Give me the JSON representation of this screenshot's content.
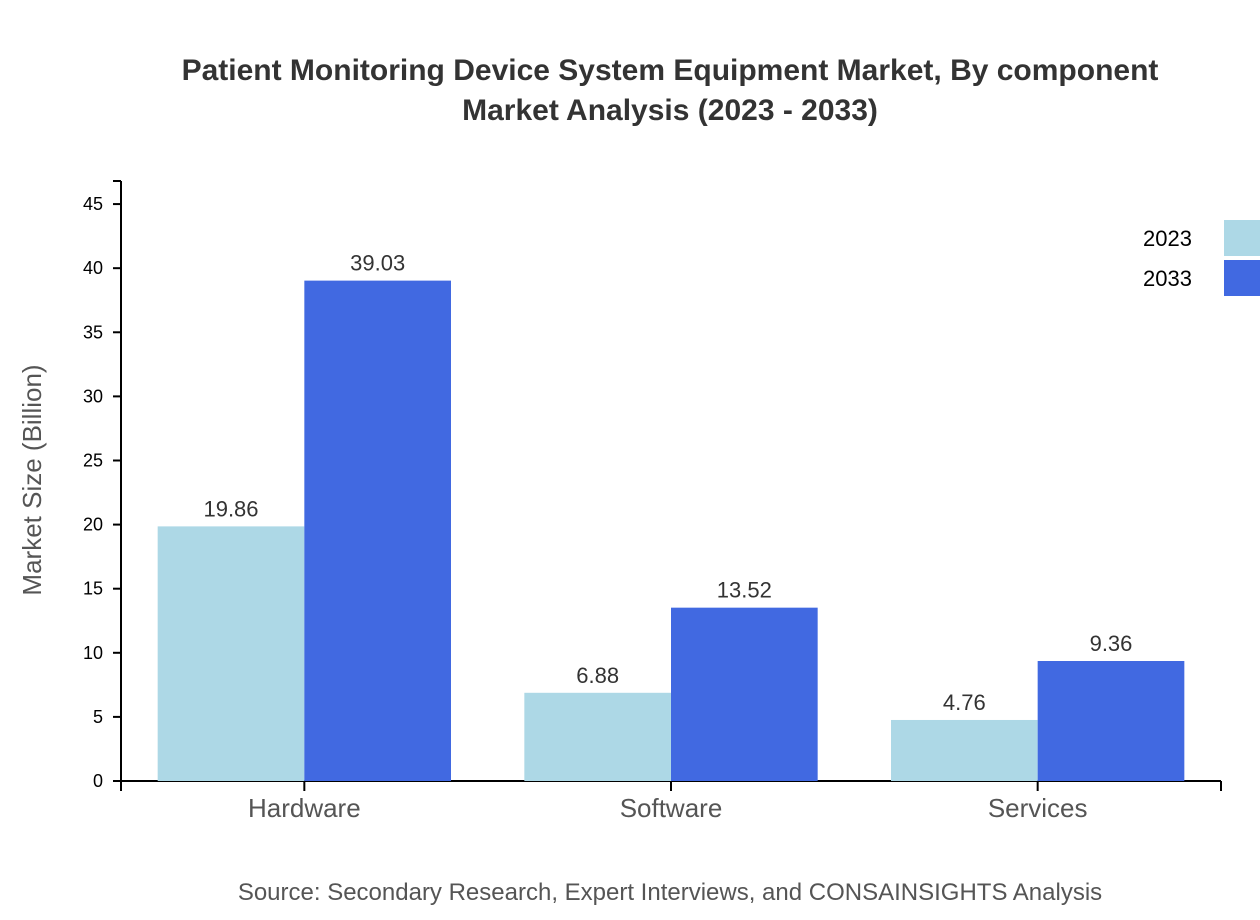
{
  "chart_data": {
    "type": "bar",
    "title": [
      "Patient Monitoring Device System Equipment Market, By component",
      "Market Analysis (2023 - 2033)"
    ],
    "xlabel": "",
    "ylabel": "Market Size (Billion)",
    "categories": [
      "Hardware",
      "Software",
      "Services"
    ],
    "series": [
      {
        "name": "2023",
        "values": [
          19.86,
          6.88,
          4.76
        ],
        "color": "#add8e6"
      },
      {
        "name": "2033",
        "values": [
          39.03,
          13.52,
          9.36
        ],
        "color": "#4169e1"
      }
    ],
    "ylim": [
      0,
      46.8
    ],
    "yticks": [
      0,
      5,
      10,
      15,
      20,
      25,
      30,
      35,
      40,
      45
    ],
    "grid": false,
    "legend": "top-right",
    "source": "Source: Secondary Research, Expert Interviews, and CONSAINSIGHTS Analysis"
  }
}
